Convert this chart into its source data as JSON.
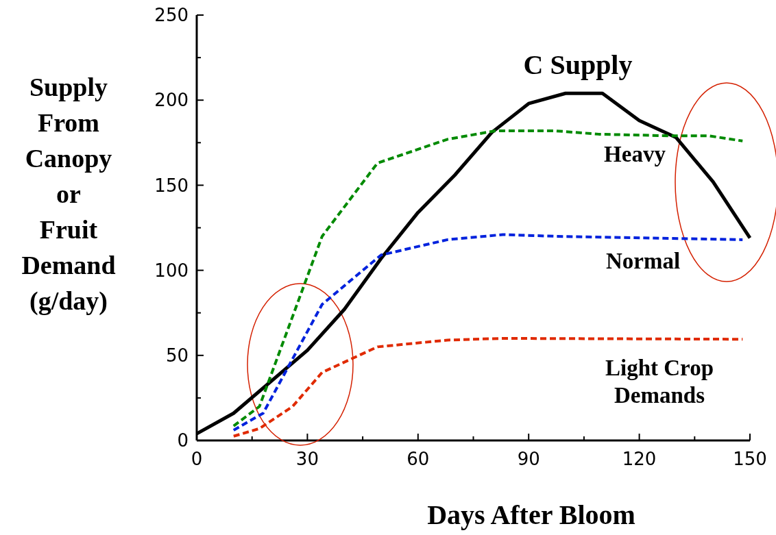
{
  "chart_data": {
    "type": "line",
    "xlabel": "Days After Bloom",
    "ylabel": "Supply From Canopy or Fruit Demand (g/day)",
    "xlim": [
      0,
      150
    ],
    "ylim": [
      0,
      250
    ],
    "xticks": [
      0,
      {
        "value": 15,
        "label": null
      },
      30,
      {
        "value": 45,
        "label": null
      },
      60,
      {
        "value": 75,
        "label": null
      },
      90,
      {
        "value": 105,
        "label": null
      },
      120,
      {
        "value": 135,
        "label": null
      },
      150
    ],
    "yticks": [
      0,
      {
        "value": 25,
        "label": null
      },
      50,
      {
        "value": 75,
        "label": null
      },
      100,
      {
        "value": 125,
        "label": null
      },
      150,
      {
        "value": 175,
        "label": null
      },
      200,
      {
        "value": 225,
        "label": null
      },
      250
    ],
    "grid": false,
    "series": [
      {
        "name": "C Supply",
        "color": "#000000",
        "line_style": "solid",
        "x": [
          0,
          10,
          30,
          40,
          50,
          60,
          70,
          80,
          90,
          100,
          110,
          120,
          130,
          140,
          150
        ],
        "values": [
          4,
          16,
          53,
          77,
          107,
          134,
          156,
          181,
          198,
          204,
          204,
          188,
          178,
          152,
          119
        ]
      },
      {
        "name": "Heavy",
        "color": "#008a00",
        "line_style": "dashed",
        "x": [
          10,
          17,
          34,
          49,
          68,
          81,
          97,
          109,
          129,
          139,
          148
        ],
        "values": [
          8.5,
          20,
          120,
          163,
          177,
          182,
          182,
          180,
          179,
          179,
          176
        ]
      },
      {
        "name": "Normal",
        "color": "#0022dd",
        "line_style": "dashed",
        "x": [
          10,
          18,
          34,
          50,
          68,
          83,
          97,
          148
        ],
        "values": [
          6,
          16,
          80,
          109,
          118,
          121,
          120,
          118
        ]
      },
      {
        "name": "Light Crop Demands",
        "color": "#e02a00",
        "line_style": "dashed",
        "x": [
          10,
          17,
          26,
          34,
          49,
          68,
          83,
          148
        ],
        "values": [
          2.5,
          7,
          20,
          40,
          55,
          59,
          60,
          59.5
        ]
      }
    ]
  }
}
